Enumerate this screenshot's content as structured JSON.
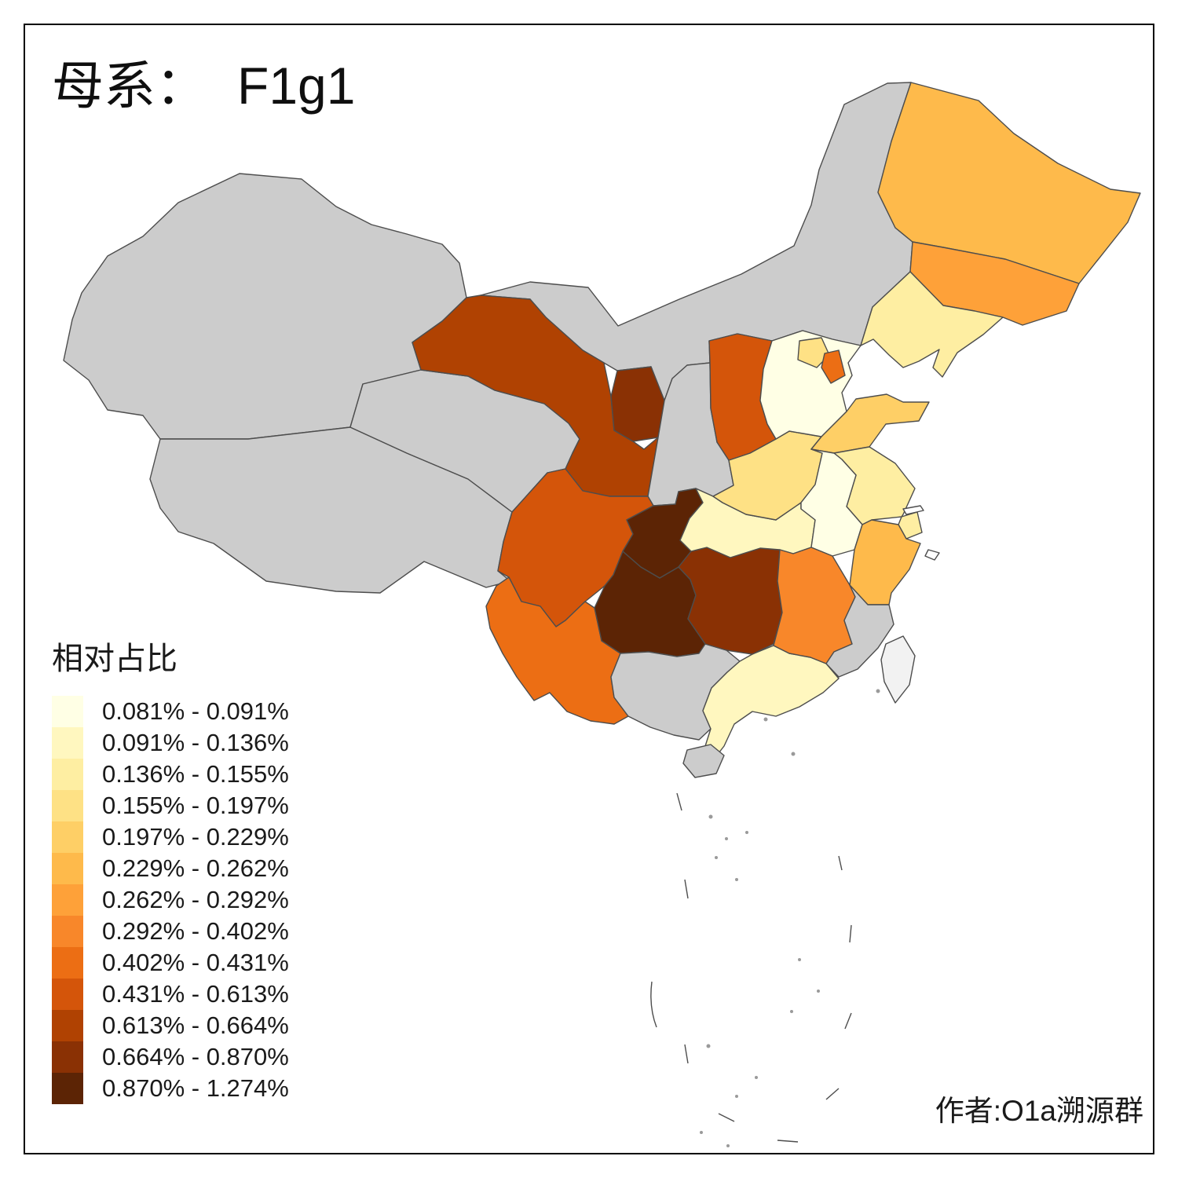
{
  "title": {
    "prefix": "母系：",
    "value": "F1g1"
  },
  "author": "作者:O1a溯源群",
  "legend": {
    "title": "相对占比",
    "items": [
      {
        "label": "0.081% - 0.091%",
        "color": "#FFFFE5"
      },
      {
        "label": "0.091% - 0.136%",
        "color": "#FFF7BF"
      },
      {
        "label": "0.136% - 0.155%",
        "color": "#FEEEA2"
      },
      {
        "label": "0.155% - 0.197%",
        "color": "#FEE185"
      },
      {
        "label": "0.197% - 0.229%",
        "color": "#FECF66"
      },
      {
        "label": "0.229% - 0.262%",
        "color": "#FEBA4B"
      },
      {
        "label": "0.262% - 0.292%",
        "color": "#FEA139"
      },
      {
        "label": "0.292% - 0.402%",
        "color": "#F8872A"
      },
      {
        "label": "0.402% - 0.431%",
        "color": "#EC6E14"
      },
      {
        "label": "0.431% - 0.613%",
        "color": "#D4550A"
      },
      {
        "label": "0.613% - 0.664%",
        "color": "#B04202"
      },
      {
        "label": "0.664% - 0.870%",
        "color": "#8A3104"
      },
      {
        "label": "0.870% - 1.274%",
        "color": "#5C2405"
      }
    ]
  },
  "map": {
    "na_color": "#CCCCCC",
    "na_light_color": "#F2F2F2",
    "provinces": [
      {
        "id": "xinjiang",
        "value_class": "na"
      },
      {
        "id": "tibet",
        "value_class": "na"
      },
      {
        "id": "qinghai",
        "value_class": "na"
      },
      {
        "id": "neimenggu",
        "value_class": "na"
      },
      {
        "id": "shaanxi",
        "value_class": "na"
      },
      {
        "id": "guangxi",
        "value_class": "na"
      },
      {
        "id": "fujian",
        "value_class": "na"
      },
      {
        "id": "hainan",
        "value_class": "na"
      },
      {
        "id": "taiwan",
        "value_class": "na_light"
      },
      {
        "id": "gansu",
        "value_class": 11
      },
      {
        "id": "ningxia",
        "value_class": 12
      },
      {
        "id": "sichuan",
        "value_class": 10
      },
      {
        "id": "chongqing",
        "value_class": 13
      },
      {
        "id": "guizhou",
        "value_class": 13
      },
      {
        "id": "hunan",
        "value_class": 12
      },
      {
        "id": "hubei",
        "value_class": 2
      },
      {
        "id": "yunnan",
        "value_class": 9
      },
      {
        "id": "jiangxi",
        "value_class": 8
      },
      {
        "id": "guangdong",
        "value_class": 2
      },
      {
        "id": "henan",
        "value_class": 4
      },
      {
        "id": "shanxi",
        "value_class": 10
      },
      {
        "id": "hebei",
        "value_class": 1
      },
      {
        "id": "beijing",
        "value_class": 4
      },
      {
        "id": "tianjin",
        "value_class": 9
      },
      {
        "id": "shandong",
        "value_class": 5
      },
      {
        "id": "jiangsu",
        "value_class": 3
      },
      {
        "id": "anhui",
        "value_class": 1
      },
      {
        "id": "shanghai",
        "value_class": 3
      },
      {
        "id": "zhejiang",
        "value_class": 6
      },
      {
        "id": "heilongjiang",
        "value_class": 6
      },
      {
        "id": "jilin",
        "value_class": 7
      },
      {
        "id": "liaoning",
        "value_class": 3
      }
    ]
  }
}
